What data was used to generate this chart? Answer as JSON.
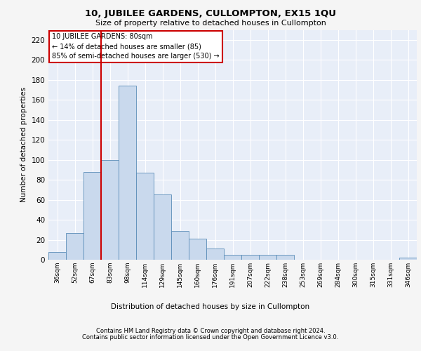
{
  "title": "10, JUBILEE GARDENS, CULLOMPTON, EX15 1QU",
  "subtitle": "Size of property relative to detached houses in Cullompton",
  "xlabel": "Distribution of detached houses by size in Cullompton",
  "ylabel": "Number of detached properties",
  "bar_labels": [
    "36sqm",
    "52sqm",
    "67sqm",
    "83sqm",
    "98sqm",
    "114sqm",
    "129sqm",
    "145sqm",
    "160sqm",
    "176sqm",
    "191sqm",
    "207sqm",
    "222sqm",
    "238sqm",
    "253sqm",
    "269sqm",
    "284sqm",
    "300sqm",
    "315sqm",
    "331sqm",
    "346sqm"
  ],
  "bar_values": [
    8,
    27,
    88,
    100,
    174,
    87,
    65,
    29,
    21,
    11,
    5,
    5,
    5,
    5,
    0,
    0,
    0,
    0,
    0,
    0,
    2
  ],
  "bar_color": "#c9d9ed",
  "bar_edge_color": "#5b8db8",
  "vline_color": "#cc0000",
  "vline_index": 3,
  "ylim": [
    0,
    230
  ],
  "yticks": [
    0,
    20,
    40,
    60,
    80,
    100,
    120,
    140,
    160,
    180,
    200,
    220
  ],
  "annotation_title": "10 JUBILEE GARDENS: 80sqm",
  "annotation_line1": "← 14% of detached houses are smaller (85)",
  "annotation_line2": "85% of semi-detached houses are larger (530) →",
  "annotation_box_color": "#ffffff",
  "annotation_box_edge": "#cc0000",
  "footer1": "Contains HM Land Registry data © Crown copyright and database right 2024.",
  "footer2": "Contains public sector information licensed under the Open Government Licence v3.0.",
  "bg_color": "#f5f5f5",
  "plot_bg_color": "#e8eef8"
}
